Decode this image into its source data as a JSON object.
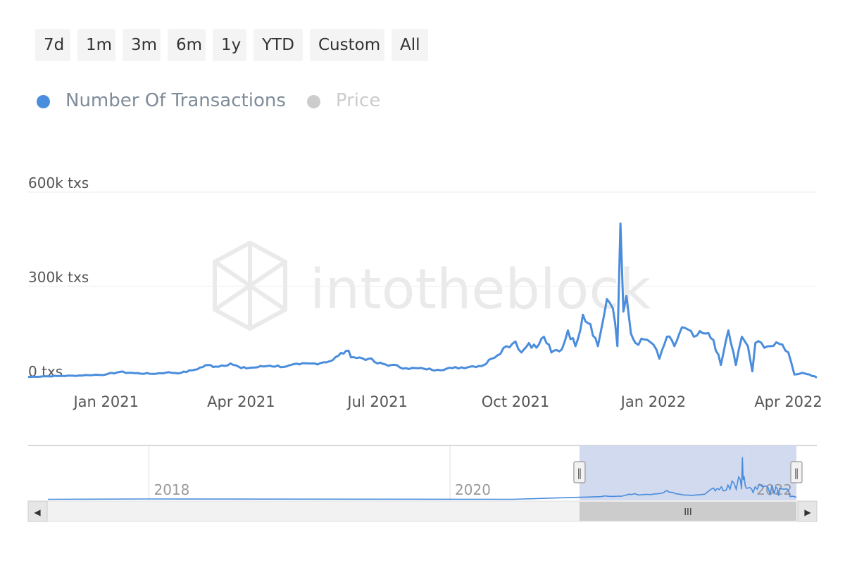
{
  "range_buttons": [
    "7d",
    "1m",
    "3m",
    "6m",
    "1y",
    "YTD",
    "Custom",
    "All"
  ],
  "legend": [
    {
      "label": "Number Of Transactions",
      "color": "#4a8ddc",
      "active": true
    },
    {
      "label": "Price",
      "color": "#cccccc",
      "active": false
    }
  ],
  "watermark": "intotheblock",
  "colors": {
    "series": "#4a8ddc",
    "navigator_mask": "#cdd6ed",
    "scrollbar": "#f2f2f2",
    "scroll_thumb": "#cccccc"
  },
  "chart_data": {
    "type": "line",
    "series": [
      {
        "name": "Number Of Transactions"
      }
    ],
    "yaxis": {
      "ticks": [
        0,
        300000,
        600000
      ],
      "labels": [
        "0 txs",
        "300k txs",
        "600k txs"
      ],
      "ylim": [
        0,
        600000
      ]
    },
    "xaxis": {
      "range": [
        "2020-11-10",
        "2022-04-20"
      ],
      "ticks": [
        "2021-01-01",
        "2021-04-01",
        "2021-07-01",
        "2021-10-01",
        "2022-01-01",
        "2022-04-01"
      ],
      "labels": [
        "Jan 2021",
        "Apr 2021",
        "Jul 2021",
        "Oct 2021",
        "Jan 2022",
        "Apr 2022"
      ]
    },
    "points": [
      [
        "2020-11-10",
        12000
      ],
      [
        "2020-11-20",
        14000
      ],
      [
        "2020-12-01",
        15000
      ],
      [
        "2020-12-10",
        16000
      ],
      [
        "2020-12-20",
        18000
      ],
      [
        "2021-01-01",
        20000
      ],
      [
        "2021-01-10",
        28000
      ],
      [
        "2021-01-20",
        24000
      ],
      [
        "2021-02-01",
        22000
      ],
      [
        "2021-02-10",
        26000
      ],
      [
        "2021-02-20",
        25000
      ],
      [
        "2021-03-01",
        35000
      ],
      [
        "2021-03-10",
        50000
      ],
      [
        "2021-03-15",
        45000
      ],
      [
        "2021-03-25",
        55000
      ],
      [
        "2021-04-01",
        40000
      ],
      [
        "2021-04-10",
        42000
      ],
      [
        "2021-04-20",
        48000
      ],
      [
        "2021-05-01",
        45000
      ],
      [
        "2021-05-10",
        52000
      ],
      [
        "2021-05-20",
        55000
      ],
      [
        "2021-06-01",
        65000
      ],
      [
        "2021-06-05",
        80000
      ],
      [
        "2021-06-10",
        95000
      ],
      [
        "2021-06-15",
        75000
      ],
      [
        "2021-06-25",
        70000
      ],
      [
        "2021-07-01",
        55000
      ],
      [
        "2021-07-10",
        50000
      ],
      [
        "2021-07-20",
        40000
      ],
      [
        "2021-08-01",
        38000
      ],
      [
        "2021-08-10",
        35000
      ],
      [
        "2021-08-20",
        40000
      ],
      [
        "2021-09-01",
        45000
      ],
      [
        "2021-09-10",
        50000
      ],
      [
        "2021-09-15",
        70000
      ],
      [
        "2021-09-25",
        110000
      ],
      [
        "2021-10-01",
        125000
      ],
      [
        "2021-10-05",
        90000
      ],
      [
        "2021-10-10",
        120000
      ],
      [
        "2021-10-15",
        105000
      ],
      [
        "2021-10-20",
        140000
      ],
      [
        "2021-10-25",
        90000
      ],
      [
        "2021-11-01",
        100000
      ],
      [
        "2021-11-05",
        160000
      ],
      [
        "2021-11-10",
        110000
      ],
      [
        "2021-11-15",
        210000
      ],
      [
        "2021-11-20",
        180000
      ],
      [
        "2021-11-25",
        110000
      ],
      [
        "2021-12-01",
        260000
      ],
      [
        "2021-12-05",
        230000
      ],
      [
        "2021-12-08",
        110000
      ],
      [
        "2021-12-10",
        500000
      ],
      [
        "2021-12-12",
        220000
      ],
      [
        "2021-12-14",
        270000
      ],
      [
        "2021-12-17",
        150000
      ],
      [
        "2021-12-20",
        120000
      ],
      [
        "2021-12-28",
        130000
      ],
      [
        "2022-01-01",
        115000
      ],
      [
        "2022-01-05",
        70000
      ],
      [
        "2022-01-10",
        140000
      ],
      [
        "2022-01-15",
        110000
      ],
      [
        "2022-01-20",
        170000
      ],
      [
        "2022-01-28",
        140000
      ],
      [
        "2022-02-05",
        150000
      ],
      [
        "2022-02-10",
        130000
      ],
      [
        "2022-02-15",
        50000
      ],
      [
        "2022-02-20",
        160000
      ],
      [
        "2022-02-25",
        50000
      ],
      [
        "2022-03-01",
        140000
      ],
      [
        "2022-03-05",
        110000
      ],
      [
        "2022-03-08",
        30000
      ],
      [
        "2022-03-10",
        120000
      ],
      [
        "2022-03-20",
        110000
      ],
      [
        "2022-03-28",
        115000
      ],
      [
        "2022-04-01",
        90000
      ],
      [
        "2022-04-05",
        20000
      ],
      [
        "2022-04-10",
        25000
      ],
      [
        "2022-04-15",
        20000
      ],
      [
        "2022-04-20",
        10000
      ]
    ]
  },
  "navigator": {
    "labels": [
      {
        "text": "2018",
        "date": "2018-01-01"
      },
      {
        "text": "2020",
        "date": "2020-01-01"
      },
      {
        "text": "2022",
        "date": "2022-01-01"
      }
    ],
    "range": [
      "2017-05-01",
      "2022-04-20"
    ],
    "selected": [
      "2020-11-10",
      "2022-04-20"
    ],
    "scroll_arrow_left": "◀",
    "scroll_arrow_right": "▶",
    "handle_grip": "‖",
    "thumb_grip": "III"
  }
}
